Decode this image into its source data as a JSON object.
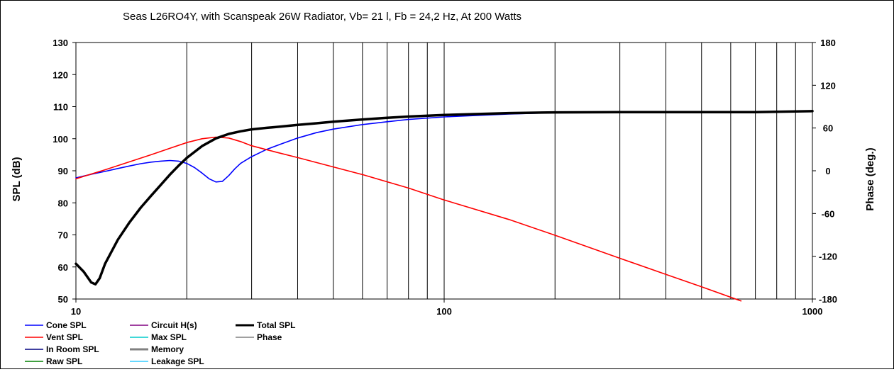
{
  "chart_data": {
    "type": "line",
    "title": "Seas L26RO4Y,  with Scanspeak 26W Radiator, Vb= 21 l,  Fb = 24,2 Hz,  At 200 Watts",
    "xlabel": "",
    "ylabel": "SPL (dB)",
    "y2label": "Phase (deg.)",
    "xscale": "log",
    "xlim": [
      10,
      1000
    ],
    "ylim": [
      50,
      130
    ],
    "y2lim": [
      -180,
      180
    ],
    "x_ticks": [
      "10",
      "100",
      "1000"
    ],
    "y_ticks": [
      "50",
      "60",
      "70",
      "80",
      "90",
      "100",
      "110",
      "120",
      "130"
    ],
    "y2_ticks": [
      "-180",
      "-120",
      "-60",
      "0",
      "60",
      "120",
      "180"
    ],
    "grid": "vertical, logarithmic",
    "legend_position": "bottom",
    "legend": [
      {
        "name": "Cone SPL",
        "color": "#0000ff"
      },
      {
        "name": "Vent SPL",
        "color": "#ff0000"
      },
      {
        "name": "In Room SPL",
        "color": "#000080"
      },
      {
        "name": "Raw SPL",
        "color": "#008000"
      },
      {
        "name": "Circuit H(s)",
        "color": "#800080"
      },
      {
        "name": "Max SPL",
        "color": "#00cccc"
      },
      {
        "name": "Memory",
        "color": "#808080"
      },
      {
        "name": "Leakage SPL",
        "color": "#33ccff"
      },
      {
        "name": "Total SPL",
        "color": "#000000"
      },
      {
        "name": "Phase",
        "color": "#808080"
      }
    ],
    "series": [
      {
        "name": "Cone SPL",
        "color": "#0000ff",
        "x": [
          10,
          11,
          12,
          13,
          14,
          15,
          16,
          17,
          18,
          19,
          20,
          21,
          22,
          23,
          24,
          25,
          26,
          27,
          28,
          30,
          33,
          36,
          40,
          45,
          50,
          60,
          70,
          80,
          100,
          150,
          200,
          300,
          500,
          700,
          1000
        ],
        "y": [
          87.8,
          88.9,
          89.8,
          90.7,
          91.5,
          92.2,
          92.7,
          93.0,
          93.2,
          93.0,
          92.3,
          91.0,
          89.3,
          87.5,
          86.5,
          86.7,
          88.5,
          90.6,
          92.3,
          94.4,
          96.7,
          98.3,
          100.2,
          101.9,
          103.0,
          104.4,
          105.3,
          106.0,
          106.8,
          107.7,
          108.1,
          108.3,
          108.3,
          108.4,
          108.6
        ]
      },
      {
        "name": "Vent SPL",
        "color": "#ff0000",
        "x": [
          10,
          12,
          14,
          16,
          18,
          20,
          22,
          24,
          26,
          28,
          30,
          35,
          40,
          50,
          60,
          80,
          100,
          150,
          200,
          300,
          400,
          500,
          640
        ],
        "y": [
          87.5,
          90.3,
          92.8,
          95.0,
          97.0,
          98.8,
          100.0,
          100.5,
          100.2,
          99.1,
          97.8,
          95.8,
          94.1,
          91.2,
          88.8,
          84.6,
          80.9,
          74.8,
          69.9,
          62.7,
          57.7,
          53.8,
          49.4
        ]
      },
      {
        "name": "Total SPL",
        "color": "#000000",
        "x": [
          10,
          10.5,
          11,
          11.3,
          11.6,
          12,
          13,
          14,
          15,
          16,
          17,
          18,
          19,
          20,
          22,
          24,
          26,
          28,
          30,
          33,
          36,
          40,
          45,
          50,
          60,
          70,
          80,
          100,
          150,
          200,
          300,
          500,
          700,
          1000
        ],
        "y": [
          61.0,
          58.5,
          55.2,
          54.6,
          56.5,
          61.0,
          68.5,
          74.0,
          78.5,
          82.2,
          85.6,
          88.8,
          91.6,
          94.0,
          97.7,
          100.1,
          101.5,
          102.3,
          102.9,
          103.4,
          103.8,
          104.3,
          104.8,
          105.3,
          106.0,
          106.5,
          106.9,
          107.4,
          108.0,
          108.2,
          108.3,
          108.3,
          108.3,
          108.6
        ]
      }
    ]
  }
}
